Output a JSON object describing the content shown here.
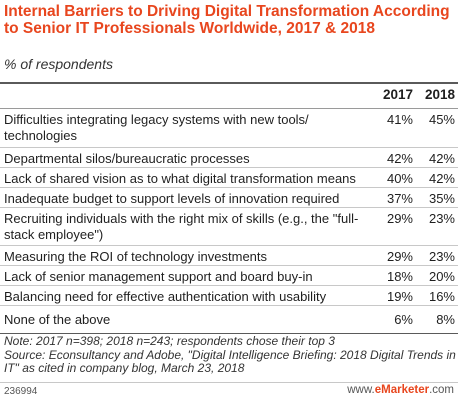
{
  "chart_data": {
    "type": "table",
    "title": "Internal Barriers to Driving Digital Transformation According to Senior IT Professionals Worldwide, 2017 & 2018",
    "subtitle": "% of respondents",
    "columns": [
      "2017",
      "2018"
    ],
    "rows": [
      {
        "label": "Difficulties integrating legacy systems with new tools/ technologies",
        "v2017": "41%",
        "v2018": "45%"
      },
      {
        "label": "Departmental silos/bureaucratic processes",
        "v2017": "42%",
        "v2018": "42%"
      },
      {
        "label": "Lack of shared vision as to what digital transformation means",
        "v2017": "40%",
        "v2018": "42%"
      },
      {
        "label": "Inadequate budget to support levels of innovation required",
        "v2017": "37%",
        "v2018": "35%"
      },
      {
        "label": "Recruiting individuals with the right mix of skills (e.g., the \"full-stack employee\")",
        "v2017": "29%",
        "v2018": "23%"
      },
      {
        "label": "Measuring the ROI of technology investments",
        "v2017": "29%",
        "v2018": "23%"
      },
      {
        "label": "Lack of senior management support and board buy-in",
        "v2017": "18%",
        "v2018": "20%"
      },
      {
        "label": "Balancing need for effective authentication with usability",
        "v2017": "19%",
        "v2018": "16%"
      },
      {
        "label": "None of the above",
        "v2017": "6%",
        "v2018": "8%"
      }
    ],
    "note": "Note: 2017 n=398; 2018 n=243; respondents chose their top 3",
    "source": "Source: Econsultancy and Adobe, \"Digital Intelligence Briefing: 2018 Digital Trends in IT\" as cited in company blog, March 23, 2018"
  },
  "footer": {
    "chart_id": "236994",
    "brand_prefix": "www.",
    "brand_name": "eMarketer",
    "brand_suffix": ".com"
  },
  "colors": {
    "accent": "#e8461e",
    "text": "#222222",
    "rule": "#5a5a5a"
  }
}
